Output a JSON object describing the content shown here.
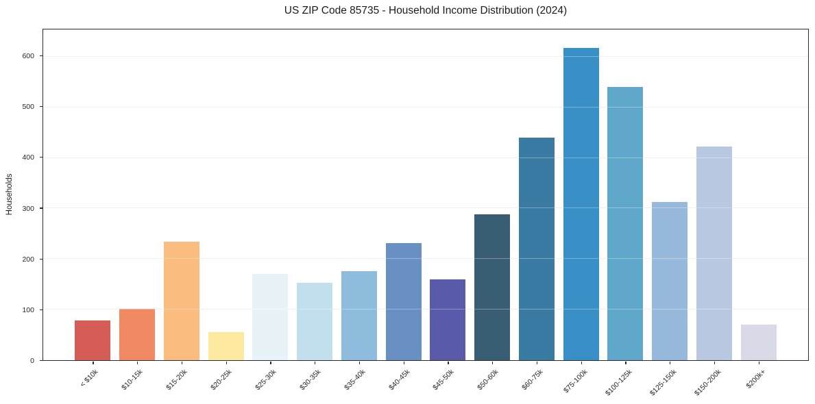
{
  "chart_data": {
    "type": "bar",
    "title": "US ZIP Code 85735 - Household Income Distribution (2024)",
    "xlabel": "",
    "ylabel": "Households",
    "categories": [
      "< $10k",
      "$10-15k",
      "$15-20k",
      "$20-25k",
      "$25-30k",
      "$30-35k",
      "$35-40k",
      "$40-45k",
      "$45-50k",
      "$50-60k",
      "$60-75k",
      "$75-100k",
      "$100-125k",
      "$125-150k",
      "$150-200k",
      "$200k+"
    ],
    "values": [
      78,
      102,
      234,
      56,
      170,
      153,
      176,
      231,
      160,
      289,
      440,
      617,
      540,
      313,
      423,
      70
    ],
    "bar_colors": [
      "#d55d55",
      "#f18a64",
      "#fbbc80",
      "#fde9a0",
      "#e8f3f8",
      "#c1dfec",
      "#8ebcdc",
      "#6890c3",
      "#5a5aab",
      "#395e73",
      "#3a7ba4",
      "#3890c6",
      "#5fa7cb",
      "#96b8da",
      "#b7c8e0",
      "#d9dae7"
    ],
    "yticks": [
      0,
      100,
      200,
      300,
      400,
      500,
      600
    ],
    "ylim": [
      0,
      654
    ],
    "grid": "horizontal",
    "legend": "none",
    "bar_width_fraction": 0.8
  },
  "colors": {
    "background": "#ffffff",
    "gridline": "#e9e9ef",
    "spine": "#2a2a2a",
    "text": "#1a1a1a"
  }
}
